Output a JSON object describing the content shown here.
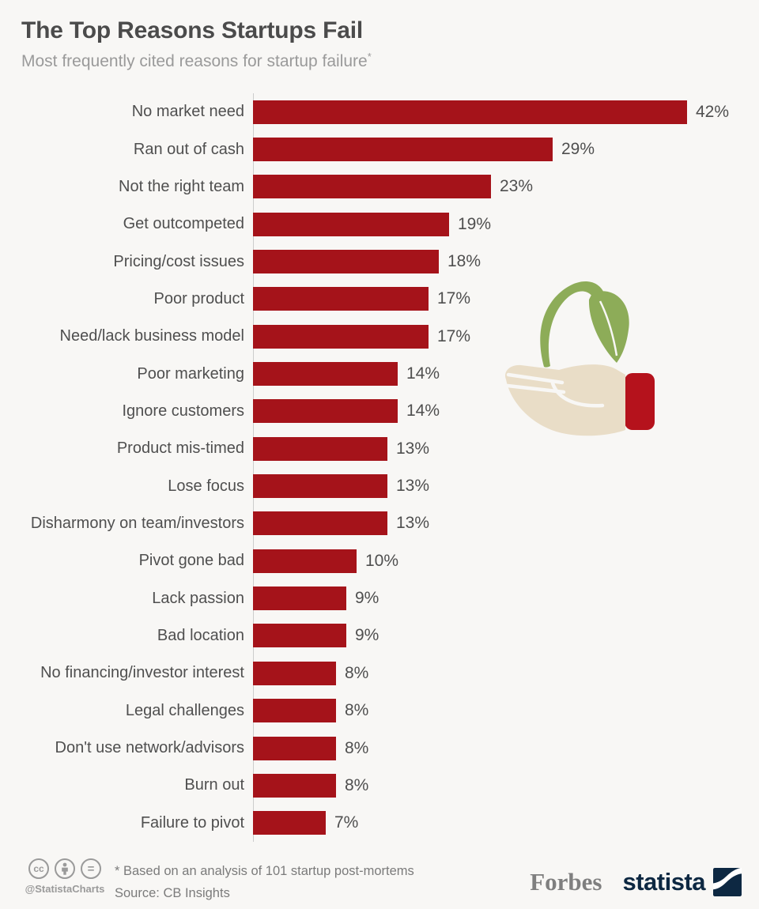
{
  "header": {
    "title": "The Top Reasons Startups Fail",
    "subtitle": "Most frequently cited reasons for startup failure",
    "footnote_marker": "*"
  },
  "chart_data": {
    "type": "bar",
    "orientation": "horizontal",
    "title": "The Top Reasons Startups Fail",
    "subtitle": "Most frequently cited reasons for startup failure*",
    "unit": "%",
    "xlim": [
      0,
      45
    ],
    "grid": false,
    "bar_color": "#a5131a",
    "categories": [
      "No market need",
      "Ran out of cash",
      "Not the right team",
      "Get outcompeted",
      "Pricing/cost issues",
      "Poor product",
      "Need/lack business model",
      "Poor marketing",
      "Ignore customers",
      "Product mis-timed",
      "Lose focus",
      "Disharmony on team/investors",
      "Pivot gone bad",
      "Lack passion",
      "Bad location",
      "No financing/investor interest",
      "Legal challenges",
      "Don't use network/advisors",
      "Burn out",
      "Failure to pivot"
    ],
    "values": [
      42,
      29,
      23,
      19,
      18,
      17,
      17,
      14,
      14,
      13,
      13,
      13,
      10,
      9,
      9,
      8,
      8,
      8,
      8,
      7
    ],
    "value_labels": [
      "42%",
      "29%",
      "23%",
      "19%",
      "18%",
      "17%",
      "17%",
      "14%",
      "14%",
      "13%",
      "13%",
      "13%",
      "10%",
      "9%",
      "9%",
      "8%",
      "8%",
      "8%",
      "8%",
      "7%"
    ]
  },
  "illustration": {
    "name": "hand-holding-sprout",
    "leaf_color": "#8dac58",
    "hand_color": "#e9ddc7",
    "cuff_color": "#b5121c"
  },
  "footer": {
    "license_icons": [
      "cc-icon",
      "attribution-icon",
      "no-derivatives-icon"
    ],
    "handle": "@StatistaCharts",
    "footnote": "* Based on an analysis of 101 startup post-mortems",
    "source": "Source: CB Insights",
    "brands": {
      "forbes": "Forbes",
      "statista": "statista"
    }
  },
  "colors": {
    "background": "#f8f7f5",
    "title": "#4b4b4b",
    "subtitle": "#9a9a9a",
    "label": "#4f4f4f",
    "axis": "#cccccc",
    "footer_text": "#7b7b7b",
    "forbes_gray": "#7f7f7f",
    "statista_navy": "#0d2842"
  }
}
